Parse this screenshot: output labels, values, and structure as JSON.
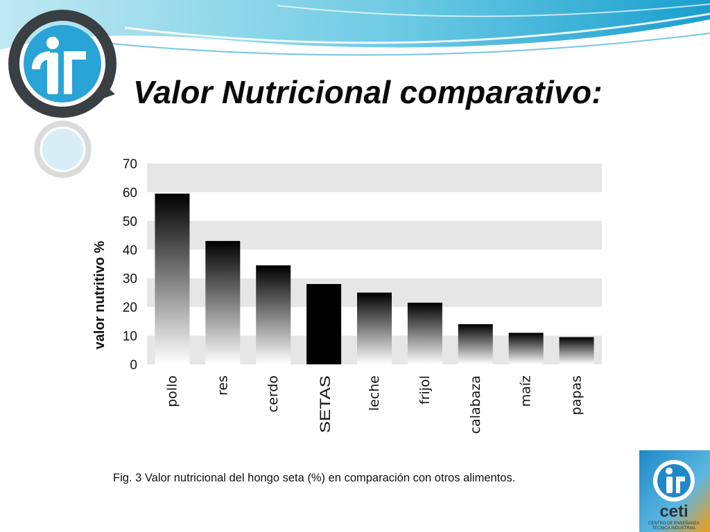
{
  "slide": {
    "title": "Valor Nutricional comparativo:"
  },
  "chart_data": {
    "type": "bar",
    "categories": [
      "pollo",
      "res",
      "cerdo",
      "SETAS",
      "leche",
      "frijol",
      "calabaza",
      "maíz",
      "papas"
    ],
    "values": [
      59.5,
      43,
      34.5,
      28,
      25,
      21.5,
      14,
      11,
      9.5
    ],
    "highlight_category": "SETAS",
    "ylabel": "valor nutritivo %",
    "ylim": [
      0,
      70
    ],
    "yticks": [
      0,
      10,
      20,
      30,
      40,
      50,
      60,
      70
    ],
    "grid": "alternating horizontal bands",
    "legend": "none",
    "colors": {
      "band": "#e6e6e6",
      "bar_top": "#000000",
      "bar_bottom": "#ffffff",
      "highlight": "#000000"
    }
  },
  "caption": {
    "fig_label": "Fig. 3",
    "text": "Valor nutricional del hongo seta (%) en comparación con otros alimentos."
  },
  "brand": {
    "name": "ceti",
    "subtitle_line1": "CENTRO DE ENSEÑANZA",
    "subtitle_line2": "TÉCNICA INDUSTRIAL",
    "colors": {
      "blue": "#1e88c8",
      "orange": "#f39c12",
      "dark": "#2d3338"
    }
  },
  "header": {
    "colors": {
      "sky_light": "#bfe8f2",
      "sky_mid": "#5fc3e0",
      "sky_deep": "#1a9fcf"
    }
  }
}
